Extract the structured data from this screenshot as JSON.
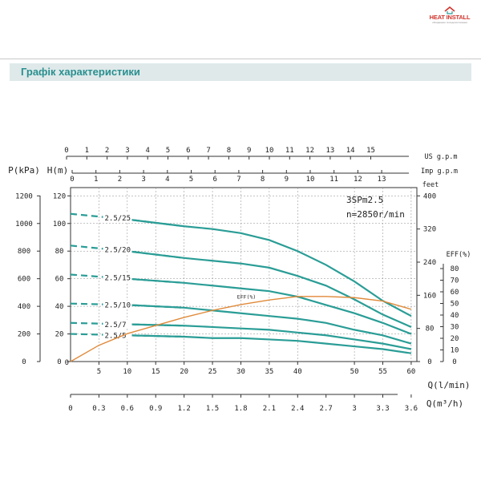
{
  "brand": {
    "name": "HEAT INSTALL",
    "tagline": "обладнання та водопостачання",
    "color": "#d0342c"
  },
  "section": {
    "title": "Графік характеристики",
    "color": "#2a8f8f"
  },
  "chart_data": {
    "type": "line",
    "model": "3SPm2.5",
    "speed": "n=2850r/min",
    "xlabel_lmin": "Q(l/min)",
    "xlabel_m3h": "Q(m³/h)",
    "left_axis_labels": [
      "P(kPa)",
      "H(m)"
    ],
    "top_axes": [
      {
        "label": "US g.p.m",
        "ticks": [
          0,
          1,
          2,
          3,
          4,
          5,
          6,
          7,
          8,
          9,
          10,
          11,
          12,
          13,
          14,
          15
        ]
      },
      {
        "label": "Imp g.p.m",
        "ticks": [
          0,
          1,
          2,
          3,
          4,
          5,
          6,
          7,
          8,
          9,
          10,
          11,
          12,
          13
        ]
      }
    ],
    "feet_label": "feet",
    "feet_ticks": [
      0,
      80,
      160,
      240,
      320,
      400
    ],
    "eff_axis_label": "EFF(%)",
    "eff_ticks": [
      0,
      10,
      20,
      30,
      40,
      50,
      60,
      70,
      80
    ],
    "eff_curve_label": "EFF(%)",
    "x_lmin_ticks": [
      5,
      10,
      15,
      20,
      25,
      30,
      35,
      40,
      50,
      55,
      60
    ],
    "x_m3h_ticks": [
      "0",
      "0.3",
      "0.6",
      "0.9",
      "1.2",
      "1.5",
      "1.8",
      "2.1",
      "2.4",
      "2.7",
      "3",
      "3.3",
      "3.6"
    ],
    "h_ticks": [
      0,
      20,
      40,
      60,
      80,
      100,
      120
    ],
    "p_ticks": [
      0,
      200,
      400,
      600,
      800,
      1000,
      1200
    ],
    "xlim": [
      0,
      60
    ],
    "hlim": [
      0,
      120
    ],
    "colors": {
      "curve": "#2a9d96",
      "eff": "#e08a3a",
      "axis": "#333333"
    },
    "series": [
      {
        "name": "2.5/25",
        "x": [
          0,
          10,
          20,
          25,
          30,
          35,
          40,
          45,
          50,
          55,
          60
        ],
        "y": [
          107,
          103,
          98,
          96,
          93,
          88,
          80,
          70,
          58,
          44,
          33
        ]
      },
      {
        "name": "2.5/20",
        "x": [
          0,
          10,
          20,
          25,
          30,
          35,
          40,
          45,
          50,
          55,
          60
        ],
        "y": [
          84,
          80,
          75,
          73,
          71,
          68,
          62,
          55,
          45,
          34,
          25
        ]
      },
      {
        "name": "2.5/15",
        "x": [
          0,
          10,
          20,
          25,
          30,
          35,
          40,
          45,
          50,
          55,
          60
        ],
        "y": [
          63,
          60,
          57,
          55,
          53,
          51,
          47,
          41,
          35,
          28,
          20
        ]
      },
      {
        "name": "2.5/10",
        "x": [
          0,
          10,
          20,
          25,
          30,
          35,
          40,
          45,
          50,
          55,
          60
        ],
        "y": [
          42,
          41,
          39,
          37,
          35,
          33,
          31,
          28,
          23,
          19,
          13
        ]
      },
      {
        "name": "2.5/7",
        "x": [
          0,
          10,
          20,
          25,
          30,
          35,
          40,
          45,
          50,
          55,
          60
        ],
        "y": [
          28,
          27,
          26,
          25,
          24,
          23,
          21,
          19,
          16,
          13,
          9
        ]
      },
      {
        "name": "2.5/5",
        "x": [
          0,
          10,
          20,
          25,
          30,
          35,
          40,
          45,
          50,
          55,
          60
        ],
        "y": [
          20,
          19,
          18,
          17,
          17,
          16,
          15,
          13,
          11,
          9,
          6
        ]
      }
    ],
    "efficiency": {
      "name": "EFF(%)",
      "x": [
        0,
        5,
        10,
        15,
        20,
        25,
        30,
        35,
        40,
        45,
        50,
        55,
        60
      ],
      "y": [
        0,
        14,
        24,
        31,
        38,
        44,
        49,
        53,
        56,
        56,
        55,
        52,
        45
      ]
    }
  }
}
